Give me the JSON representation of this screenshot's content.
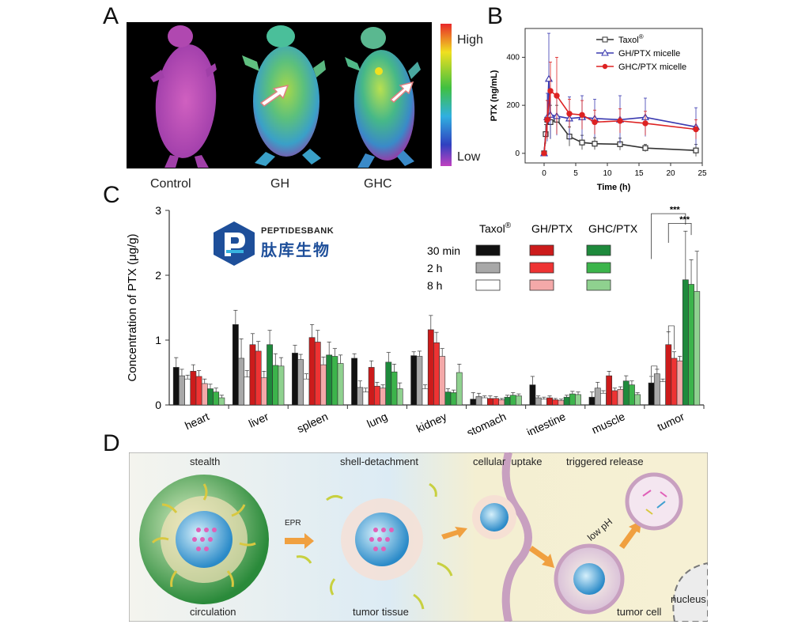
{
  "figure": {
    "panels": {
      "a": "A",
      "b": "B",
      "c": "C",
      "d": "D"
    }
  },
  "panel_a": {
    "labels": [
      "Control",
      "GH",
      "GHC"
    ],
    "scale_high": "High",
    "scale_low": "Low"
  },
  "logo": {
    "name_en": "PEPTIDESBANK",
    "name_cn": "肽库生物"
  },
  "panel_d": {
    "labels": {
      "stealth": "stealth",
      "circulation": "circulation",
      "epr": "EPR",
      "shell_detachment": "shell-detachment",
      "tumor_tissue": "tumor tissue",
      "cellular_uptake": "cellular  uptake",
      "triggered_release": "triggered release",
      "low_ph": "low pH",
      "tumor_cell": "tumor cell",
      "nucleus": "nucleus"
    }
  },
  "chart_data": [
    {
      "type": "line",
      "xlabel": "Time (h)",
      "ylabel": "PTX (ng/mL)",
      "xlim": [
        -3,
        25
      ],
      "ylim": [
        -40,
        520
      ],
      "xticks": [
        "0",
        "5",
        "10",
        "15",
        "20",
        "25"
      ],
      "yticks": [
        "0",
        "200",
        "400"
      ],
      "legend_position": "top-right",
      "series": [
        {
          "name": "Taxol",
          "name_sup": "®",
          "color": "#333333",
          "marker": "square",
          "x": [
            0,
            0.25,
            0.5,
            1,
            2,
            4,
            6,
            8,
            12,
            16,
            24
          ],
          "y": [
            0,
            80,
            140,
            130,
            140,
            70,
            45,
            40,
            38,
            22,
            12
          ],
          "err": [
            0,
            40,
            80,
            70,
            60,
            40,
            30,
            25,
            25,
            15,
            25
          ]
        },
        {
          "name": "GH/PTX micelle",
          "color": "#3a3ab0",
          "marker": "triangle",
          "x": [
            0,
            0.5,
            0.75,
            1,
            2,
            4,
            6,
            8,
            12,
            16,
            24
          ],
          "y": [
            0,
            150,
            310,
            160,
            155,
            145,
            150,
            145,
            140,
            150,
            110
          ],
          "err": [
            0,
            100,
            190,
            100,
            80,
            90,
            90,
            80,
            100,
            80,
            80
          ]
        },
        {
          "name": "GHC/PTX micelle",
          "color": "#dd2222",
          "marker": "circle",
          "x": [
            0,
            0.5,
            1,
            2,
            4,
            6,
            8,
            12,
            16,
            24
          ],
          "y": [
            0,
            140,
            260,
            240,
            165,
            160,
            130,
            135,
            125,
            100
          ],
          "err": [
            0,
            80,
            120,
            160,
            60,
            60,
            50,
            50,
            50,
            40
          ]
        }
      ]
    },
    {
      "type": "bar",
      "ylabel": "Concentration of PTX (μg/g)",
      "ylim": [
        0,
        3
      ],
      "yticks": [
        "0",
        "1",
        "2",
        "3"
      ],
      "categories": [
        "heart",
        "liver",
        "spleen",
        "lung",
        "kidney",
        "stomach",
        "intestine",
        "muscle",
        "tumor"
      ],
      "legend_groups": [
        "Taxol",
        "GH/PTX",
        "GHC/PTX"
      ],
      "legend_sup": "®",
      "legend_times": [
        "30 min",
        "2  h",
        "8  h"
      ],
      "significance": [
        "***",
        "***"
      ],
      "series": [
        {
          "name": "Taxol 30 min",
          "color": "#111111",
          "values": [
            0.58,
            1.24,
            0.8,
            0.72,
            0.76,
            0.09,
            0.31,
            0.12,
            0.34
          ],
          "err": [
            0.15,
            0.22,
            0.12,
            0.07,
            0.06,
            0.1,
            0.13,
            0.08,
            0.1
          ]
        },
        {
          "name": "Taxol 2 h",
          "color": "#a8a8a8",
          "values": [
            0.45,
            0.72,
            0.7,
            0.27,
            0.75,
            0.13,
            0.11,
            0.26,
            0.48
          ],
          "err": [
            0.1,
            0.3,
            0.08,
            0.1,
            0.08,
            0.05,
            0.03,
            0.09,
            0.07
          ]
        },
        {
          "name": "Taxol 8 h",
          "color": "#ffffff",
          "values": [
            0.4,
            0.43,
            0.4,
            0.2,
            0.25,
            0.11,
            0.09,
            0.18,
            0.36
          ],
          "err": [
            0.06,
            0.1,
            0.08,
            0.06,
            0.06,
            0.03,
            0.03,
            0.04,
            0.04
          ]
        },
        {
          "name": "GH/PTX 30 min",
          "color": "#cc1b1b",
          "values": [
            0.52,
            0.93,
            1.04,
            0.58,
            1.16,
            0.1,
            0.11,
            0.45,
            0.93
          ],
          "err": [
            0.1,
            0.17,
            0.2,
            0.1,
            0.22,
            0.04,
            0.03,
            0.07,
            0.2
          ]
        },
        {
          "name": "GH/PTX 2 h",
          "color": "#ee3333",
          "values": [
            0.44,
            0.83,
            0.97,
            0.29,
            0.96,
            0.1,
            0.08,
            0.22,
            0.72
          ],
          "err": [
            0.09,
            0.15,
            0.18,
            0.06,
            0.16,
            0.03,
            0.02,
            0.04,
            0.1
          ]
        },
        {
          "name": "GH/PTX 8 h",
          "color": "#f4a9a9",
          "values": [
            0.33,
            0.42,
            0.62,
            0.26,
            0.75,
            0.08,
            0.07,
            0.24,
            0.68
          ],
          "err": [
            0.07,
            0.1,
            0.12,
            0.05,
            0.12,
            0.02,
            0.02,
            0.04,
            0.07
          ]
        },
        {
          "name": "GHC/PTX 30 min",
          "color": "#1e8a3c",
          "values": [
            0.25,
            0.93,
            0.77,
            0.66,
            0.2,
            0.12,
            0.12,
            0.37,
            1.93
          ],
          "err": [
            0.07,
            0.22,
            0.2,
            0.15,
            0.05,
            0.03,
            0.03,
            0.08,
            0.75
          ]
        },
        {
          "name": "GHC/PTX 2 h",
          "color": "#3cb44b",
          "values": [
            0.2,
            0.61,
            0.75,
            0.51,
            0.19,
            0.15,
            0.17,
            0.31,
            1.86
          ],
          "err": [
            0.06,
            0.18,
            0.12,
            0.12,
            0.04,
            0.04,
            0.04,
            0.06,
            0.38
          ]
        },
        {
          "name": "GHC/PTX 8 h",
          "color": "#8fd18f",
          "values": [
            0.11,
            0.6,
            0.64,
            0.25,
            0.5,
            0.14,
            0.16,
            0.16,
            1.75
          ],
          "err": [
            0.04,
            0.13,
            0.13,
            0.09,
            0.13,
            0.03,
            0.04,
            0.03,
            0.62
          ]
        }
      ]
    }
  ]
}
